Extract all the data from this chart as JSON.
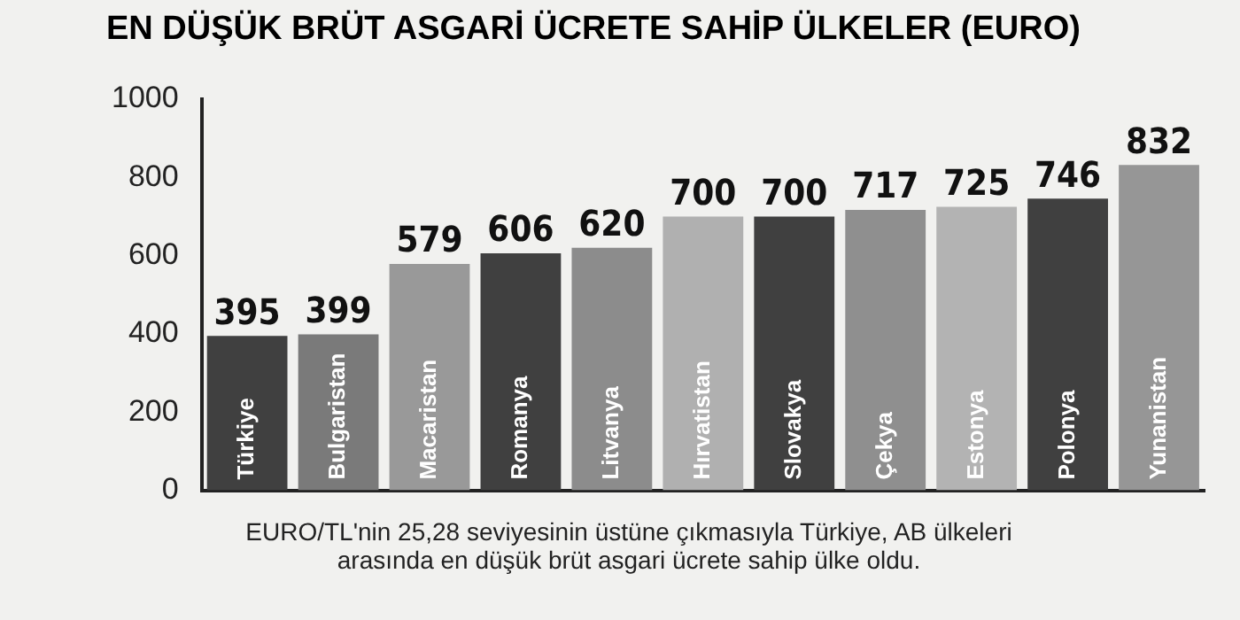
{
  "chart_data": {
    "type": "bar",
    "title": "EN DÜŞÜK BRÜT ASGARİ ÜCRETE SAHİP ÜLKELER (EURO)",
    "categories": [
      "Türkiye",
      "Bulgaristan",
      "Macaristan",
      "Romanya",
      "Litvanya",
      "Hırvatistan",
      "Slovakya",
      "Çekya",
      "Estonya",
      "Polonya",
      "Yunanistan"
    ],
    "values": [
      395,
      399,
      579,
      606,
      620,
      700,
      700,
      717,
      725,
      746,
      832
    ],
    "colors": [
      "#404040",
      "#7a7a7a",
      "#999999",
      "#404040",
      "#8c8c8c",
      "#b0b0b0",
      "#404040",
      "#8f8f8f",
      "#b3b3b3",
      "#404040",
      "#969696"
    ],
    "ylim": [
      0,
      1000
    ],
    "yticks": [
      0,
      200,
      400,
      600,
      800,
      1000
    ],
    "grid": false,
    "legend": false,
    "data_labels": true,
    "annotations": [
      "EURO/TL'nin 25,28 seviyesinin üstüne çıkmasıyla Türkiye, AB ülkeleri arasında en düşük brüt asgari ücrete sahip ülke oldu."
    ]
  }
}
